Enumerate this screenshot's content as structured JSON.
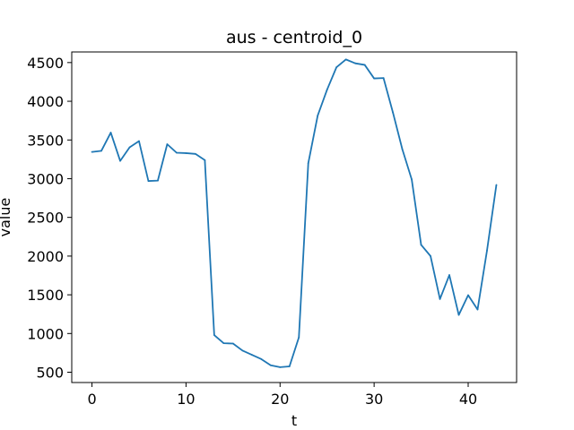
{
  "chart_data": {
    "type": "line",
    "title": "aus - centroid_0",
    "xlabel": "t",
    "ylabel": "value",
    "xlim": [
      -2.15,
      45.15
    ],
    "ylim": [
      367,
      4637
    ],
    "xticks": [
      0,
      10,
      20,
      30,
      40
    ],
    "yticks": [
      500,
      1000,
      1500,
      2000,
      2500,
      3000,
      3500,
      4000,
      4500
    ],
    "grid": false,
    "series": [
      {
        "color": "#1f77b4",
        "x": [
          0,
          1,
          2,
          3,
          4,
          5,
          6,
          7,
          8,
          9,
          10,
          11,
          12,
          13,
          14,
          15,
          16,
          17,
          18,
          19,
          20,
          21,
          22,
          23,
          24,
          25,
          26,
          27,
          28,
          29,
          30,
          31,
          32,
          33,
          34,
          35,
          36,
          37,
          38,
          39,
          40,
          41,
          42,
          43
        ],
        "values": [
          3345,
          3360,
          3595,
          3230,
          3405,
          3485,
          2970,
          2975,
          3445,
          3335,
          3330,
          3320,
          3240,
          980,
          875,
          870,
          780,
          725,
          670,
          590,
          565,
          575,
          950,
          3200,
          3815,
          4150,
          4440,
          4540,
          4490,
          4470,
          4295,
          4300,
          3855,
          3380,
          2990,
          2145,
          2000,
          1445,
          1755,
          1240,
          1495,
          1310,
          2070,
          2920
        ]
      }
    ]
  }
}
